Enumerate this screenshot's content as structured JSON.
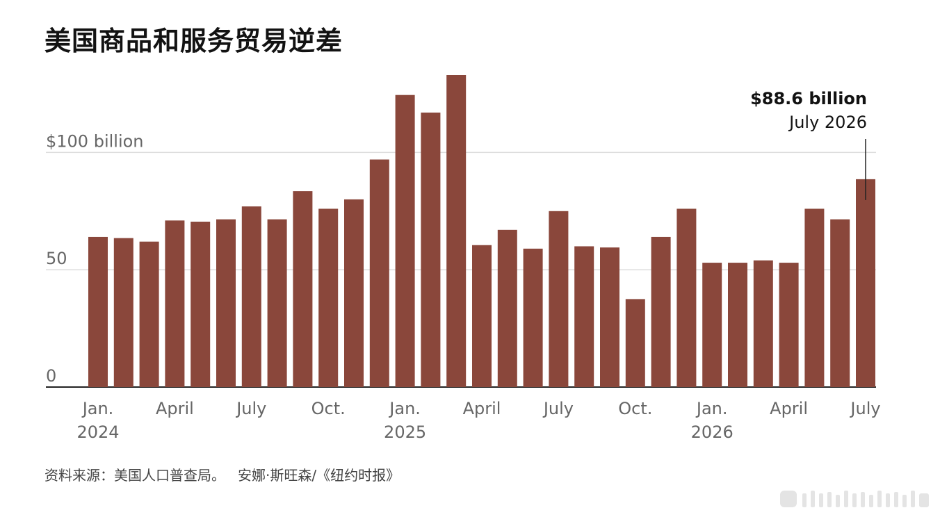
{
  "title": "美国商品和服务贸易逆差",
  "source": {
    "text": "资料来源：美国人口普查局。",
    "credit": "安娜·斯旺森/《纽约时报》"
  },
  "colors": {
    "bar": "#8a473b",
    "grid": "#dddddd",
    "axis": "#222222",
    "tick_label": "#666666"
  },
  "chart_data": {
    "type": "bar",
    "categories": [
      "2024-01",
      "2024-02",
      "2024-03",
      "2024-04",
      "2024-05",
      "2024-06",
      "2024-07",
      "2024-08",
      "2024-09",
      "2024-10",
      "2024-11",
      "2024-12",
      "2025-01",
      "2025-02",
      "2025-03",
      "2025-04",
      "2025-05",
      "2025-06",
      "2025-07",
      "2025-08",
      "2025-09",
      "2025-10",
      "2025-11",
      "2025-12",
      "2026-01",
      "2026-02",
      "2026-03",
      "2026-04",
      "2026-05",
      "2026-06",
      "2026-07"
    ],
    "values": [
      64,
      63.5,
      62,
      71,
      70.5,
      71.5,
      77,
      71.5,
      83.5,
      76,
      80,
      97,
      124.5,
      117,
      133,
      60.5,
      67,
      59,
      75,
      60,
      59.5,
      37.5,
      64,
      76,
      53,
      53,
      54,
      53,
      76,
      71.5,
      88.6
    ],
    "ylim": [
      0,
      133
    ],
    "yticks": [
      {
        "value": 0,
        "label": "0"
      },
      {
        "value": 50,
        "label": "50"
      },
      {
        "value": 100,
        "label": "$100 billion"
      }
    ],
    "xticks": [
      {
        "index": 0,
        "label": "Jan.",
        "year": "2024"
      },
      {
        "index": 3,
        "label": "April",
        "year": ""
      },
      {
        "index": 6,
        "label": "July",
        "year": ""
      },
      {
        "index": 9,
        "label": "Oct.",
        "year": ""
      },
      {
        "index": 12,
        "label": "Jan.",
        "year": "2025"
      },
      {
        "index": 15,
        "label": "April",
        "year": ""
      },
      {
        "index": 18,
        "label": "July",
        "year": ""
      },
      {
        "index": 21,
        "label": "Oct.",
        "year": ""
      },
      {
        "index": 24,
        "label": "Jan.",
        "year": "2026"
      },
      {
        "index": 27,
        "label": "April",
        "year": ""
      },
      {
        "index": 30,
        "label": "July",
        "year": ""
      }
    ],
    "annotation": {
      "index": 30,
      "value_label": "$88.6 billion",
      "date_label": "July 2026"
    },
    "grid": true
  }
}
